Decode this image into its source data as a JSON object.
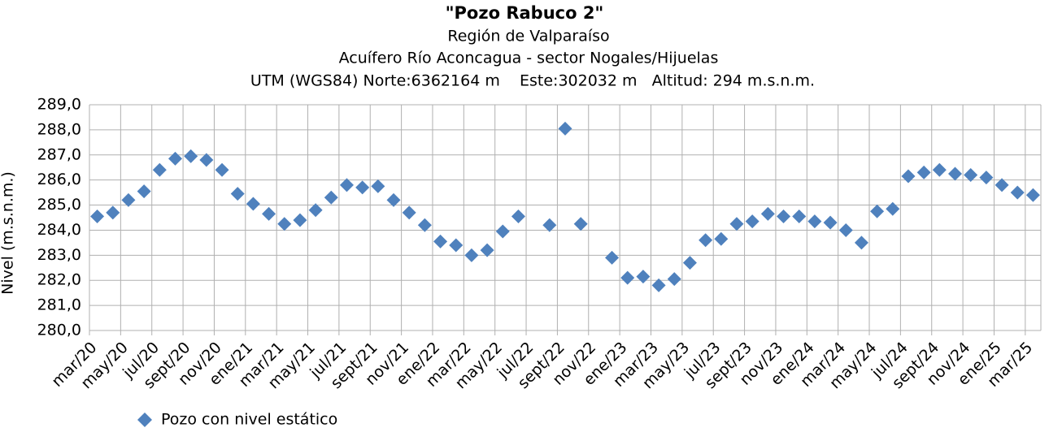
{
  "chart_data": {
    "type": "scatter",
    "title": "\"Pozo Rabuco 2\"",
    "subtitle_lines": [
      "Región de Valparaíso",
      "Acuífero Río Aconcagua - sector Nogales/Hijuelas",
      "UTM (WGS84) Norte:6362164 m    Este:302032 m   Altitud: 294 m.s.n.m."
    ],
    "y_label": "Nivel (m.s.n.m.)",
    "grid": true,
    "legend": "bottom-left",
    "series": [
      {
        "name": "Pozo con nivel estático",
        "color": "#4f81bd",
        "x": [
          "2020-03",
          "2020-04",
          "2020-05",
          "2020-06",
          "2020-07",
          "2020-08",
          "2020-09",
          "2020-10",
          "2020-11",
          "2020-12",
          "2021-01",
          "2021-02",
          "2021-03",
          "2021-04",
          "2021-05",
          "2021-06",
          "2021-07",
          "2021-08",
          "2021-09",
          "2021-10",
          "2021-11",
          "2021-12",
          "2022-01",
          "2022-02",
          "2022-03",
          "2022-04",
          "2022-05",
          "2022-06",
          "2022-08",
          "2022-09",
          "2022-10",
          "2022-12",
          "2023-01",
          "2023-02",
          "2023-03",
          "2023-04",
          "2023-05",
          "2023-06",
          "2023-07",
          "2023-08",
          "2023-09",
          "2023-10",
          "2023-11",
          "2023-12",
          "2024-01",
          "2024-02",
          "2024-03",
          "2024-04",
          "2024-05",
          "2024-06",
          "2024-07",
          "2024-08",
          "2024-09",
          "2024-10",
          "2024-11",
          "2024-12",
          "2025-01",
          "2025-02",
          "2025-03"
        ],
        "values": [
          284.55,
          284.7,
          285.2,
          285.55,
          286.4,
          286.85,
          286.95,
          286.8,
          286.4,
          285.45,
          285.05,
          284.65,
          284.25,
          284.4,
          284.8,
          285.3,
          285.8,
          285.7,
          285.75,
          285.2,
          284.7,
          284.2,
          283.55,
          283.4,
          283.0,
          283.2,
          283.95,
          284.55,
          284.2,
          288.05,
          284.25,
          282.9,
          282.1,
          282.15,
          281.8,
          282.05,
          282.7,
          283.6,
          283.65,
          284.25,
          284.35,
          284.65,
          284.55,
          284.55,
          284.35,
          284.3,
          284.0,
          283.5,
          284.75,
          284.85,
          286.15,
          286.3,
          286.4,
          286.25,
          286.2,
          286.1,
          285.8,
          285.5,
          285.4
        ]
      }
    ],
    "xlim": [
      "2020-03",
      "2025-04"
    ],
    "xticks": [
      {
        "value": "2020-03",
        "label": "mar/20"
      },
      {
        "value": "2020-05",
        "label": "may/20"
      },
      {
        "value": "2020-07",
        "label": "jul/20"
      },
      {
        "value": "2020-09",
        "label": "sept/20"
      },
      {
        "value": "2020-11",
        "label": "nov/20"
      },
      {
        "value": "2021-01",
        "label": "ene/21"
      },
      {
        "value": "2021-03",
        "label": "mar/21"
      },
      {
        "value": "2021-05",
        "label": "may/21"
      },
      {
        "value": "2021-07",
        "label": "jul/21"
      },
      {
        "value": "2021-09",
        "label": "sept/21"
      },
      {
        "value": "2021-11",
        "label": "nov/21"
      },
      {
        "value": "2022-01",
        "label": "ene/22"
      },
      {
        "value": "2022-03",
        "label": "mar/22"
      },
      {
        "value": "2022-05",
        "label": "may/22"
      },
      {
        "value": "2022-07",
        "label": "jul/22"
      },
      {
        "value": "2022-09",
        "label": "sept/22"
      },
      {
        "value": "2022-11",
        "label": "nov/22"
      },
      {
        "value": "2023-01",
        "label": "ene/23"
      },
      {
        "value": "2023-03",
        "label": "mar/23"
      },
      {
        "value": "2023-05",
        "label": "may/23"
      },
      {
        "value": "2023-07",
        "label": "jul/23"
      },
      {
        "value": "2023-09",
        "label": "sept/23"
      },
      {
        "value": "2023-11",
        "label": "nov/23"
      },
      {
        "value": "2024-01",
        "label": "ene/24"
      },
      {
        "value": "2024-03",
        "label": "mar/24"
      },
      {
        "value": "2024-05",
        "label": "may/24"
      },
      {
        "value": "2024-07",
        "label": "jul/24"
      },
      {
        "value": "2024-09",
        "label": "sept/24"
      },
      {
        "value": "2024-11",
        "label": "nov/24"
      },
      {
        "value": "2025-01",
        "label": "ene/25"
      },
      {
        "value": "2025-03",
        "label": "mar/25"
      }
    ],
    "ylim": [
      280,
      289
    ],
    "yticks": [
      {
        "value": 280,
        "label": "280,0"
      },
      {
        "value": 281,
        "label": "281,0"
      },
      {
        "value": 282,
        "label": "282,0"
      },
      {
        "value": 283,
        "label": "283,0"
      },
      {
        "value": 284,
        "label": "284,0"
      },
      {
        "value": 285,
        "label": "285,0"
      },
      {
        "value": 286,
        "label": "286,0"
      },
      {
        "value": 287,
        "label": "287,0"
      },
      {
        "value": 288,
        "label": "288,0"
      },
      {
        "value": 289,
        "label": "289,0"
      }
    ]
  }
}
